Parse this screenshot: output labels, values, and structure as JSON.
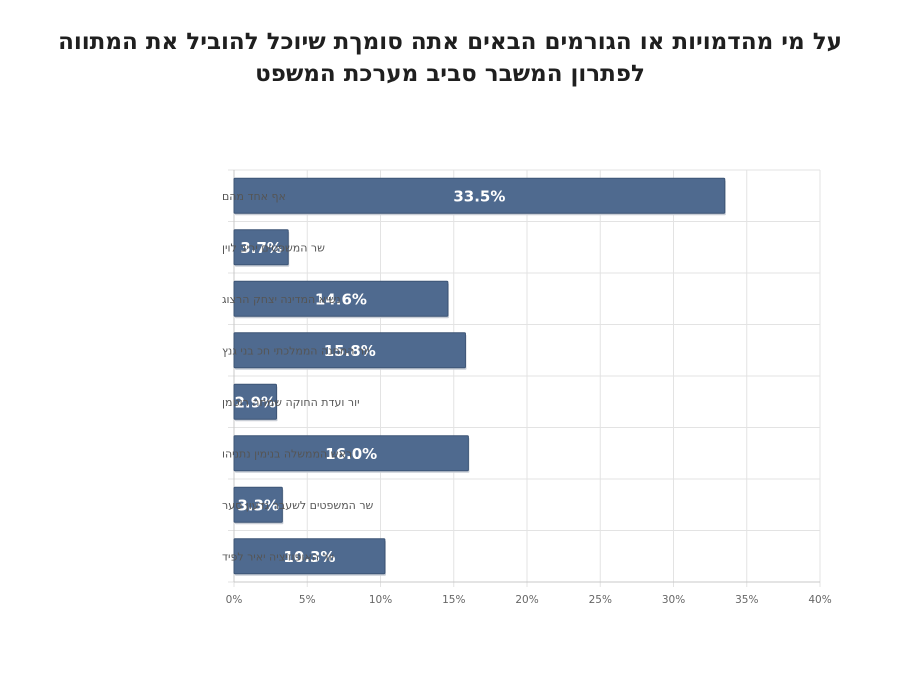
{
  "chart_data": {
    "type": "bar",
    "orientation": "horizontal",
    "title": "על מי מהדמויות או הגורמים הבאים אתה סומךת שיוכל להוביל את המתווה לפתרון המשבר סביב מערכת המשפט",
    "categories": [
      "אף אחד מהם",
      "שר המשפטים יריב לוין",
      "נשיא המדינה יצחק הרצוג",
      "יור המחנה הממלכתי חכ בני גנץ",
      "יור ועדת החוקה שמחה רוטמן",
      "ראש הממשלה בנימין נתניהו",
      "שר המשפטים לשעבר גדעון סער",
      "יור האופוזיציה יאיר לפיד"
    ],
    "values": [
      33.5,
      3.7,
      14.6,
      15.8,
      2.9,
      16.0,
      3.3,
      10.3
    ],
    "value_labels": [
      "33.5%",
      "3.7%",
      "14.6%",
      "15.8%",
      "2.9%",
      "16.0%",
      "3.3%",
      "10.3%"
    ],
    "xlim": [
      0,
      40
    ],
    "x_ticks": [
      0,
      5,
      10,
      15,
      20,
      25,
      30,
      35,
      40
    ],
    "x_tick_labels": [
      "0%",
      "5%",
      "10%",
      "15%",
      "20%",
      "25%",
      "30%",
      "35%",
      "40%"
    ],
    "xlabel": "",
    "ylabel": "",
    "grid": true,
    "legend": "none",
    "colors": {
      "bar": "#4f6a8f",
      "bar_edge": "#3d5576",
      "grid": "#e3e3e3",
      "axis": "#c8c8c8"
    }
  }
}
